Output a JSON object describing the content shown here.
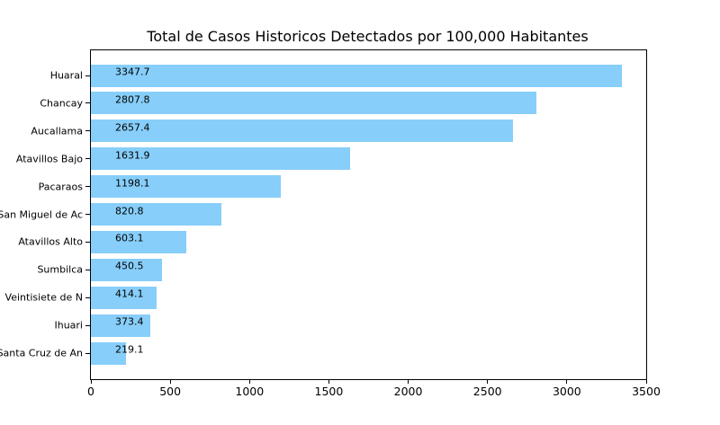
{
  "chart_data": {
    "type": "bar",
    "orientation": "horizontal",
    "title": "Total de Casos Historicos Detectados por 100,000 Habitantes",
    "categories": [
      "Huaral",
      "Chancay",
      "Aucallama",
      "Atavillos Bajo",
      "Pacaraos",
      "San Miguel de Ac",
      "Atavillos Alto",
      "Sumbilca",
      "Veintisiete de N",
      "Ihuari",
      "Santa Cruz de An"
    ],
    "values": [
      3347.7,
      2807.8,
      2657.4,
      1631.9,
      1198.1,
      820.8,
      603.1,
      450.5,
      414.1,
      373.4,
      219.1
    ],
    "value_labels": [
      "3347.7",
      "2807.8",
      "2657.4",
      "1631.9",
      "1198.1",
      "820.8",
      "603.1",
      "450.5",
      "414.1",
      "373.4",
      "219.1"
    ],
    "xlabel": "",
    "ylabel": "",
    "xlim": [
      0,
      3500
    ],
    "xticks": [
      0,
      500,
      1000,
      1500,
      2000,
      2500,
      3000,
      3500
    ],
    "xtick_labels": [
      "0",
      "500",
      "1000",
      "1500",
      "2000",
      "2500",
      "3000",
      "3500"
    ],
    "bar_color": "#87CEFA",
    "text_color": "#000000",
    "grid": false,
    "legend": null
  }
}
